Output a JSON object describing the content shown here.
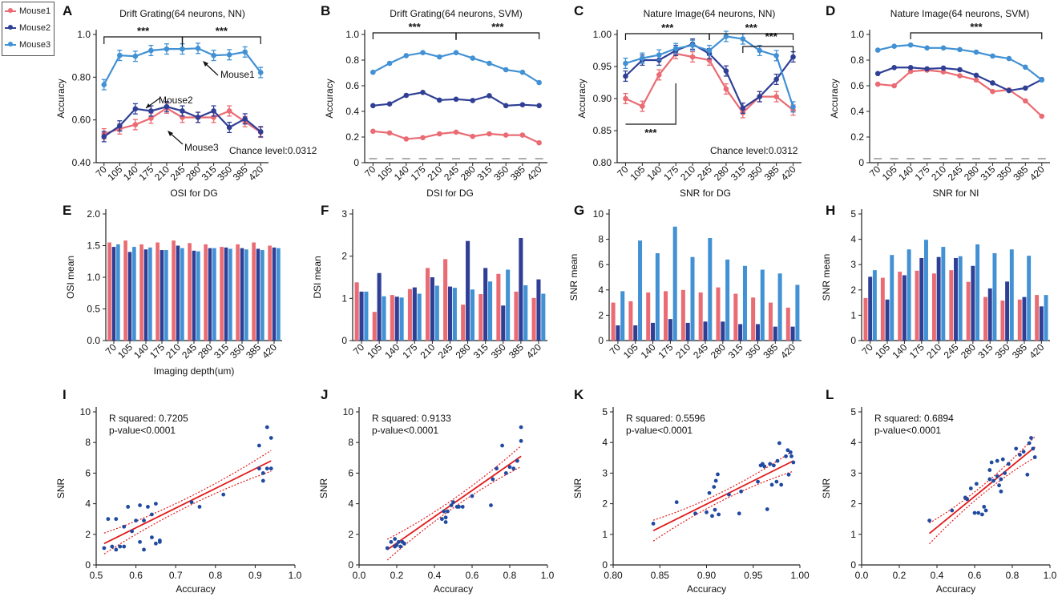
{
  "colors": {
    "mouse1": "#ea6b73",
    "mouse2": "#2f3f95",
    "mouse3": "#4191d4",
    "scatter": "#1f4aa0",
    "fit": "#e21a1a"
  },
  "legend": [
    "Mouse1",
    "Mouse2",
    "Mouse3"
  ],
  "chart_data": [
    {
      "id": "A",
      "type": "line",
      "title": "Drift Grating(64 neurons, NN)",
      "xlabel": "",
      "ylabel": "Accuracy",
      "categories": [
        "70",
        "105",
        "140",
        "175",
        "210",
        "245",
        "280",
        "315",
        "350",
        "385",
        "420"
      ],
      "ylim": [
        0.4,
        1.0
      ],
      "yticks": [
        "0.40",
        "0.60",
        "0.80",
        "1.0"
      ],
      "series": [
        {
          "name": "Mouse1",
          "values": [
            0.535,
            0.558,
            0.578,
            0.608,
            0.655,
            0.612,
            0.612,
            0.612,
            0.642,
            0.592,
            0.542
          ]
        },
        {
          "name": "Mouse2",
          "values": [
            0.522,
            0.572,
            0.652,
            0.642,
            0.662,
            0.642,
            0.612,
            0.642,
            0.565,
            0.605,
            0.545
          ]
        },
        {
          "name": "Mouse3",
          "values": [
            0.765,
            0.902,
            0.898,
            0.925,
            0.932,
            0.932,
            0.935,
            0.902,
            0.905,
            0.918,
            0.822
          ]
        }
      ],
      "annotations": [
        "***",
        "***",
        "Mouse2",
        "Mouse1",
        "Mouse3",
        "Chance level:0.0312"
      ]
    },
    {
      "id": "B",
      "type": "line",
      "title": "Drift Grating(64 neurons, SVM)",
      "xlabel": "",
      "ylabel": "Accuracy",
      "categories": [
        "70",
        "105",
        "140",
        "175",
        "210",
        "245",
        "280",
        "315",
        "350",
        "385",
        "420"
      ],
      "ylim": [
        0,
        1.0
      ],
      "yticks": [
        "0",
        "0.2",
        "0.4",
        "0.6",
        "0.8",
        "1.0"
      ],
      "series": [
        {
          "name": "Mouse1",
          "values": [
            0.245,
            0.232,
            0.185,
            0.195,
            0.225,
            0.238,
            0.205,
            0.225,
            0.215,
            0.215,
            0.155
          ]
        },
        {
          "name": "Mouse2",
          "values": [
            0.445,
            0.458,
            0.525,
            0.548,
            0.488,
            0.495,
            0.485,
            0.522,
            0.445,
            0.452,
            0.445
          ]
        },
        {
          "name": "Mouse3",
          "values": [
            0.705,
            0.775,
            0.835,
            0.858,
            0.825,
            0.858,
            0.815,
            0.775,
            0.725,
            0.705,
            0.625
          ]
        }
      ],
      "annotations": [
        "***",
        "***"
      ]
    },
    {
      "id": "C",
      "type": "line",
      "title": "Nature Image(64 neurons, NN)",
      "xlabel": "",
      "ylabel": "Accuracy",
      "categories": [
        "70",
        "105",
        "140",
        "175",
        "210",
        "245",
        "280",
        "315",
        "350",
        "385",
        "420"
      ],
      "ylim": [
        0.8,
        1.0
      ],
      "yticks": [
        "0.80",
        "0.85",
        "0.90",
        "0.95",
        "1.00"
      ],
      "series": [
        {
          "name": "Mouse1",
          "values": [
            0.9,
            0.888,
            0.937,
            0.97,
            0.965,
            0.96,
            0.915,
            0.878,
            0.903,
            0.903,
            0.882
          ]
        },
        {
          "name": "Mouse2",
          "values": [
            0.935,
            0.96,
            0.96,
            0.975,
            0.985,
            0.97,
            0.943,
            0.885,
            0.903,
            0.93,
            0.965
          ]
        },
        {
          "name": "Mouse3",
          "values": [
            0.955,
            0.963,
            0.968,
            0.978,
            0.983,
            0.975,
            0.997,
            0.993,
            0.975,
            0.967,
            0.887
          ]
        }
      ],
      "annotations": [
        "***",
        "***",
        "***",
        "***",
        "Chance level:0.0312"
      ]
    },
    {
      "id": "D",
      "type": "line",
      "title": "Nature Image(64 neurons, SVM)",
      "xlabel": "",
      "ylabel": "Accuracy",
      "categories": [
        "70",
        "105",
        "140",
        "175",
        "210",
        "245",
        "280",
        "315",
        "350",
        "385",
        "420"
      ],
      "ylim": [
        0,
        1.0
      ],
      "yticks": [
        "0",
        "0.2",
        "0.4",
        "0.6",
        "0.8",
        "1.0"
      ],
      "series": [
        {
          "name": "Mouse1",
          "values": [
            0.612,
            0.6,
            0.712,
            0.722,
            0.708,
            0.678,
            0.645,
            0.555,
            0.568,
            0.482,
            0.362
          ]
        },
        {
          "name": "Mouse2",
          "values": [
            0.695,
            0.742,
            0.742,
            0.732,
            0.738,
            0.725,
            0.682,
            0.622,
            0.562,
            0.582,
            0.648
          ]
        },
        {
          "name": "Mouse3",
          "values": [
            0.878,
            0.908,
            0.918,
            0.895,
            0.895,
            0.882,
            0.862,
            0.832,
            0.812,
            0.745,
            0.645
          ]
        }
      ],
      "annotations": [
        "***"
      ]
    },
    {
      "id": "E",
      "type": "bar",
      "title": "OSI for DG",
      "xlabel": "Imaging depth(um)",
      "ylabel": "OSI mean",
      "categories": [
        "70",
        "105",
        "140",
        "175",
        "210",
        "245",
        "280",
        "315",
        "350",
        "385",
        "420"
      ],
      "ylim": [
        0,
        2.0
      ],
      "yticks": [
        "0.0",
        "0.5",
        "1.0",
        "1.5",
        "2.0"
      ],
      "series": [
        {
          "name": "Mouse1",
          "values": [
            1.55,
            1.58,
            1.52,
            1.55,
            1.58,
            1.54,
            1.52,
            1.48,
            1.52,
            1.55,
            1.5
          ]
        },
        {
          "name": "Mouse2",
          "values": [
            1.48,
            1.4,
            1.44,
            1.43,
            1.5,
            1.42,
            1.46,
            1.47,
            1.46,
            1.45,
            1.47
          ]
        },
        {
          "name": "Mouse3",
          "values": [
            1.52,
            1.48,
            1.47,
            1.43,
            1.46,
            1.41,
            1.46,
            1.45,
            1.44,
            1.43,
            1.46
          ]
        }
      ]
    },
    {
      "id": "F",
      "type": "bar",
      "title": "DSI for DG",
      "xlabel": "",
      "ylabel": "DSI mean",
      "categories": [
        "70",
        "105",
        "140",
        "175",
        "210",
        "245",
        "280",
        "315",
        "350",
        "385",
        "420"
      ],
      "ylim": [
        0,
        3
      ],
      "yticks": [
        "0",
        "1",
        "2",
        "3"
      ],
      "series": [
        {
          "name": "Mouse1",
          "values": [
            1.38,
            0.68,
            1.08,
            1.22,
            1.72,
            1.93,
            0.85,
            1.1,
            1.58,
            1.16,
            1.01
          ]
        },
        {
          "name": "Mouse2",
          "values": [
            1.16,
            1.6,
            1.04,
            1.26,
            1.5,
            1.28,
            2.36,
            1.72,
            0.83,
            2.43,
            1.45
          ]
        },
        {
          "name": "Mouse3",
          "values": [
            1.16,
            1.05,
            1.02,
            1.11,
            1.3,
            1.25,
            1.21,
            1.4,
            1.68,
            1.31,
            1.11
          ]
        }
      ]
    },
    {
      "id": "G",
      "type": "bar",
      "title": "SNR for DG",
      "xlabel": "",
      "ylabel": "SNR mean",
      "categories": [
        "70",
        "105",
        "140",
        "175",
        "210",
        "245",
        "280",
        "315",
        "350",
        "385",
        "420"
      ],
      "ylim": [
        0,
        10
      ],
      "yticks": [
        "0",
        "2",
        "4",
        "6",
        "8",
        "10"
      ],
      "series": [
        {
          "name": "Mouse1",
          "values": [
            3.0,
            3.1,
            3.8,
            3.9,
            4.0,
            3.8,
            4.2,
            3.7,
            3.4,
            3.0,
            2.6
          ]
        },
        {
          "name": "Mouse2",
          "values": [
            1.2,
            1.2,
            1.4,
            1.7,
            1.4,
            1.5,
            1.5,
            1.3,
            1.3,
            1.1,
            1.1
          ]
        },
        {
          "name": "Mouse3",
          "values": [
            3.9,
            7.9,
            6.9,
            9.0,
            6.6,
            8.1,
            6.4,
            5.9,
            5.6,
            5.3,
            4.4
          ]
        }
      ]
    },
    {
      "id": "H",
      "type": "bar",
      "title": "SNR for NI",
      "xlabel": "",
      "ylabel": "SNR mean",
      "categories": [
        "70",
        "105",
        "140",
        "175",
        "210",
        "245",
        "280",
        "315",
        "350",
        "385",
        "420"
      ],
      "ylim": [
        0,
        5
      ],
      "yticks": [
        "0",
        "1",
        "2",
        "3",
        "4",
        "5"
      ],
      "series": [
        {
          "name": "Mouse1",
          "values": [
            1.68,
            2.48,
            2.72,
            2.76,
            2.65,
            2.78,
            2.32,
            1.72,
            1.58,
            1.62,
            1.8
          ]
        },
        {
          "name": "Mouse2",
          "values": [
            2.52,
            1.62,
            2.58,
            3.26,
            3.3,
            3.26,
            2.95,
            2.06,
            2.33,
            1.72,
            1.35
          ]
        },
        {
          "name": "Mouse3",
          "values": [
            2.78,
            3.38,
            3.6,
            3.98,
            3.7,
            3.33,
            3.8,
            3.45,
            3.6,
            3.35,
            1.8
          ]
        }
      ]
    },
    {
      "id": "I",
      "type": "scatter",
      "title": "",
      "xlabel": "Accuracy",
      "ylabel": "SNR",
      "xlim": [
        0.5,
        1.0
      ],
      "xticks": [
        "0.5",
        "0.6",
        "0.7",
        "0.8",
        "0.9",
        "1.0"
      ],
      "ylim": [
        0,
        10
      ],
      "yticks": [
        "0",
        "2",
        "4",
        "6",
        "8",
        "10"
      ],
      "r_squared_label": "R squared:  0.7205",
      "p_value_label": "p-value<0.0001",
      "fit": {
        "x": [
          0.52,
          0.94
        ],
        "y": [
          1.4,
          6.8
        ]
      },
      "x": [
        0.52,
        0.53,
        0.54,
        0.55,
        0.55,
        0.56,
        0.57,
        0.57,
        0.58,
        0.59,
        0.6,
        0.61,
        0.61,
        0.62,
        0.62,
        0.63,
        0.64,
        0.64,
        0.65,
        0.65,
        0.66,
        0.66,
        0.74,
        0.76,
        0.82,
        0.91,
        0.91,
        0.92,
        0.92,
        0.93,
        0.93,
        0.94,
        0.94
      ],
      "y": [
        1.1,
        3.0,
        1.2,
        1.0,
        3.0,
        1.2,
        2.5,
        1.2,
        3.8,
        2.2,
        2.9,
        1.5,
        3.9,
        2.9,
        1.0,
        3.8,
        1.8,
        3.3,
        1.4,
        4.0,
        1.5,
        1.6,
        4.1,
        3.8,
        4.6,
        7.8,
        6.3,
        6.0,
        5.5,
        9.0,
        6.3,
        8.3,
        6.3
      ]
    },
    {
      "id": "J",
      "type": "scatter",
      "title": "",
      "xlabel": "Accuracy",
      "ylabel": "SNR",
      "xlim": [
        0.0,
        1.0
      ],
      "xticks": [
        "0.0",
        "0.2",
        "0.4",
        "0.6",
        "0.8",
        "1.0"
      ],
      "ylim": [
        0,
        10
      ],
      "yticks": [
        "0",
        "2",
        "4",
        "6",
        "8",
        "10"
      ],
      "r_squared_label": "R squared: 0.9133",
      "p_value_label": "p-value<0.0001",
      "fit": {
        "x": [
          0.15,
          0.86
        ],
        "y": [
          1.0,
          7.1
        ]
      },
      "x": [
        0.15,
        0.17,
        0.19,
        0.19,
        0.2,
        0.21,
        0.22,
        0.23,
        0.24,
        0.44,
        0.45,
        0.46,
        0.46,
        0.47,
        0.49,
        0.5,
        0.52,
        0.53,
        0.55,
        0.6,
        0.7,
        0.71,
        0.73,
        0.76,
        0.78,
        0.8,
        0.82,
        0.84,
        0.86,
        0.86
      ],
      "y": [
        1.1,
        1.5,
        1.2,
        1.7,
        1.3,
        1.5,
        1.2,
        1.5,
        1.4,
        3.0,
        3.5,
        3.1,
        2.8,
        3.5,
        3.9,
        4.1,
        3.8,
        3.8,
        3.8,
        4.5,
        3.9,
        5.6,
        6.3,
        7.8,
        6.0,
        6.4,
        6.3,
        6.8,
        8.1,
        9.0
      ]
    },
    {
      "id": "K",
      "type": "scatter",
      "title": "",
      "xlabel": "Accuracy",
      "ylabel": "SNR",
      "xlim": [
        0.8,
        1.0
      ],
      "xticks": [
        "0.80",
        "0.85",
        "0.90",
        "0.95",
        "1.00"
      ],
      "ylim": [
        0,
        5
      ],
      "yticks": [
        "0",
        "1",
        "2",
        "3",
        "4",
        "5"
      ],
      "r_squared_label": "R squared: 0.5596",
      "p_value_label": "p-value<0.0001",
      "fit": {
        "x": [
          0.843,
          0.993
        ],
        "y": [
          1.12,
          3.4
        ]
      },
      "x": [
        0.843,
        0.868,
        0.888,
        0.9,
        0.903,
        0.906,
        0.908,
        0.909,
        0.91,
        0.912,
        0.913,
        0.924,
        0.935,
        0.937,
        0.955,
        0.958,
        0.96,
        0.962,
        0.965,
        0.968,
        0.97,
        0.972,
        0.975,
        0.976,
        0.978,
        0.98,
        0.985,
        0.987,
        0.988,
        0.99,
        0.991,
        0.993
      ],
      "y": [
        1.35,
        2.05,
        1.68,
        1.72,
        2.35,
        1.6,
        2.55,
        1.8,
        2.75,
        2.96,
        1.65,
        2.3,
        1.68,
        2.4,
        2.72,
        3.25,
        3.3,
        3.22,
        1.82,
        3.3,
        2.62,
        3.25,
        2.72,
        3.4,
        3.98,
        2.62,
        3.55,
        3.75,
        2.95,
        3.68,
        3.55,
        3.35
      ]
    },
    {
      "id": "L",
      "type": "scatter",
      "title": "",
      "xlabel": "Accuracy",
      "ylabel": "SNR",
      "xlim": [
        0.0,
        1.0
      ],
      "xticks": [
        "0.0",
        "0.2",
        "0.4",
        "0.6",
        "0.8",
        "1.0"
      ],
      "ylim": [
        0,
        5
      ],
      "yticks": [
        "0",
        "1",
        "2",
        "3",
        "4",
        "5"
      ],
      "r_squared_label": "R squared: 0.6894",
      "p_value_label": "p-value<0.0001",
      "fit": {
        "x": [
          0.36,
          0.92
        ],
        "y": [
          1.03,
          3.85
        ]
      },
      "x": [
        0.36,
        0.48,
        0.55,
        0.56,
        0.58,
        0.6,
        0.61,
        0.62,
        0.64,
        0.65,
        0.66,
        0.68,
        0.68,
        0.69,
        0.7,
        0.72,
        0.72,
        0.73,
        0.74,
        0.74,
        0.75,
        0.76,
        0.78,
        0.82,
        0.84,
        0.86,
        0.88,
        0.89,
        0.9,
        0.91,
        0.92
      ],
      "y": [
        1.45,
        1.78,
        2.2,
        2.15,
        2.5,
        1.7,
        2.65,
        1.7,
        1.65,
        1.9,
        1.78,
        2.8,
        3.1,
        3.35,
        2.75,
        3.4,
        2.9,
        2.6,
        2.8,
        2.4,
        3.45,
        3.0,
        3.3,
        3.8,
        3.6,
        3.7,
        2.95,
        3.98,
        4.15,
        3.8,
        3.52
      ]
    }
  ]
}
